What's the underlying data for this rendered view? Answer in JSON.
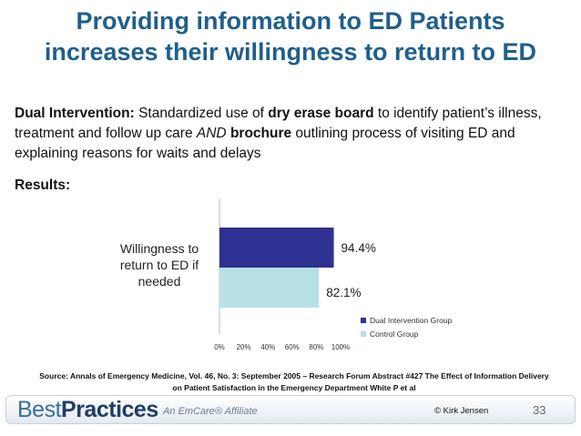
{
  "slide": {
    "title_line1": "Providing information to ED Patients",
    "title_line2": "increases their willingness to return to ED",
    "intro": {
      "label": "Dual Intervention:",
      "t1": " Standardized use of ",
      "b1": "dry erase board",
      "t2": " to identify patient’s illness, treatment and follow up care ",
      "i1": "AND",
      "t3": " ",
      "b2": "brochure",
      "t4": " outlining process of visiting ED and explaining reasons for waits and delays"
    },
    "results_label": "Results:",
    "source_line1": "Source:  Annals of Emergency Medicine, Vol. 46, No. 3: September 2005 – Research Forum Abstract #427 The Effect of Information Delivery",
    "source_line2": "on Patient Satisfaction in the Emergency Department White P et al",
    "footer": {
      "logo_plain": "Best",
      "logo_bold": "Practices",
      "affiliate": "An EmCare® Affiliate",
      "copyright": "© Kirk Jensen",
      "page_number": "33"
    }
  },
  "chart_data": {
    "type": "bar",
    "orientation": "horizontal",
    "categories": [
      "Willingness to return to ED if needed"
    ],
    "category_label_lines": [
      "Willingness to",
      "return to ED if",
      "needed"
    ],
    "series": [
      {
        "name": "Dual Intervention Group",
        "values": [
          94.4
        ],
        "labels": [
          "94.4%"
        ],
        "color": "#2e3192"
      },
      {
        "name": "Control Group",
        "values": [
          82.1
        ],
        "labels": [
          "82.1%"
        ],
        "color": "#b7e0e5"
      }
    ],
    "xlim": [
      0,
      100
    ],
    "xticks": [
      0,
      20,
      40,
      60,
      80,
      100
    ],
    "xtick_labels": [
      "0%",
      "20%",
      "40%",
      "60%",
      "80%",
      "100%"
    ],
    "grid": false,
    "legend_position": "bottom-right"
  }
}
